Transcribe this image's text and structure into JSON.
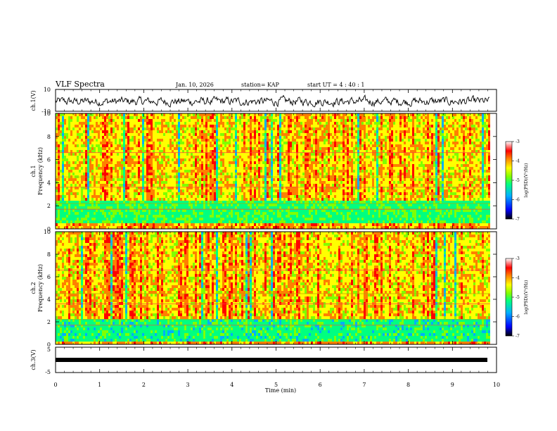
{
  "header": {
    "title": "VLF Spectra",
    "date": "Jan. 10, 2026",
    "station": "station= KAP",
    "start_ut": "start UT =  4 : 40 : 1"
  },
  "chart_data": [
    {
      "type": "line",
      "name": "ch1-waveform",
      "ylabel": "ch.1(V)",
      "ylim": [
        -10,
        10
      ],
      "yticks": [
        "10",
        "-10"
      ],
      "xlim": [
        0,
        10
      ]
    },
    {
      "type": "heatmap",
      "name": "ch1-spectrogram",
      "ylabel": "ch.1\nFrequency (kHz)",
      "ylabel_line1": "ch.1",
      "ylabel_line2": "Frequency (kHz)",
      "ylim": [
        0,
        10
      ],
      "yticks": [
        "0",
        "2",
        "4",
        "6",
        "8",
        "10"
      ],
      "xlim": [
        0,
        9.85
      ],
      "colorbar": {
        "label": "log(PSD)(V²/Hz)",
        "range": [
          -7,
          -3
        ],
        "ticks": [
          "-3",
          "-4",
          "-5",
          "-6",
          "-7"
        ]
      }
    },
    {
      "type": "heatmap",
      "name": "ch2-spectrogram",
      "ylabel_line1": "ch.2",
      "ylabel_line2": "Frequency (kHz)",
      "ylim": [
        0,
        10
      ],
      "yticks": [
        "0",
        "2",
        "4",
        "6",
        "8",
        "10"
      ],
      "xlim": [
        0,
        9.85
      ],
      "colorbar": {
        "label": "log(PSD)(V²/Hz)",
        "range": [
          -7,
          -3
        ],
        "ticks": [
          "-3",
          "-4",
          "-5",
          "-6",
          "-7"
        ]
      }
    },
    {
      "type": "line",
      "name": "ch3-waveform",
      "ylabel": "ch.3(V)",
      "ylim": [
        -5,
        5
      ],
      "yticks": [
        "5",
        "-5"
      ],
      "value": 0
    }
  ],
  "xaxis": {
    "label": "Time (min)",
    "ticks": [
      "0",
      "1",
      "2",
      "3",
      "4",
      "5",
      "6",
      "7",
      "8",
      "9",
      "10"
    ],
    "range": [
      0,
      10
    ]
  },
  "colors": {
    "colormap": [
      "#000000",
      "#0000ff",
      "#00b0ff",
      "#00ff80",
      "#80ff00",
      "#ffff00",
      "#ff8000",
      "#ff0000",
      "#ffffff"
    ]
  }
}
